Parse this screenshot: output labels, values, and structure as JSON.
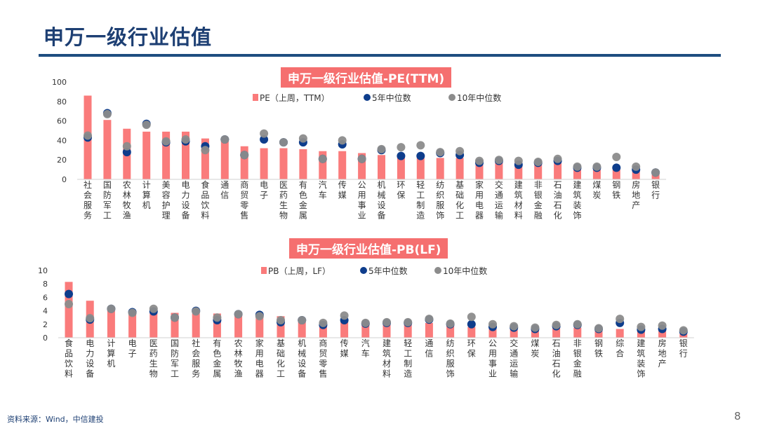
{
  "slide": {
    "title": "申万一级行业估值",
    "source": "资料来源：Wind，中信建投",
    "page_number": "8"
  },
  "colors": {
    "bar": "#fa7b7b",
    "median5": "#0e3d8c",
    "median10": "#8c8c8c",
    "title_bg": "#f56f6f",
    "brand": "#1d3f73"
  },
  "chart_data": [
    {
      "type": "bar",
      "title": "申万一级行业估值-PE(TTM)",
      "ylim": [
        0,
        100
      ],
      "yticks": [
        0,
        20,
        40,
        60,
        80,
        100
      ],
      "legend": [
        "PE（上周，TTM）",
        "5年中位数",
        "10年中位数"
      ],
      "categories": [
        "社会服务",
        "国防军工",
        "农林牧渔",
        "计算机",
        "美容护理",
        "电力设备",
        "食品饮料",
        "通信",
        "商贸零售",
        "电子",
        "医药生物",
        "有色金属",
        "汽车",
        "传媒",
        "公用事业",
        "机械设备",
        "环保",
        "轻工制造",
        "纺织服饰",
        "基础化工",
        "家用电器",
        "交通运输",
        "建筑材料",
        "非银金融",
        "石油石化",
        "建筑装饰",
        "煤炭",
        "钢铁",
        "房地产",
        "银行"
      ],
      "series": [
        {
          "name": "PE（上周，TTM）",
          "values": [
            86,
            61,
            52,
            49,
            49,
            49,
            42,
            40,
            34,
            32,
            32,
            31,
            29,
            29,
            27,
            25,
            24,
            22,
            22,
            22,
            20,
            19,
            18,
            18,
            17,
            11,
            10,
            10,
            9,
            5
          ]
        },
        {
          "name": "5年中位数",
          "values": [
            43,
            68,
            28,
            57,
            38,
            39,
            34,
            41,
            25,
            41,
            38,
            38,
            21,
            36,
            21,
            30,
            24,
            24,
            27,
            25,
            17,
            19,
            15,
            17,
            19,
            12,
            12,
            12,
            10,
            7
          ]
        },
        {
          "name": "10年中位数",
          "values": [
            45,
            67,
            34,
            56,
            39,
            41,
            30,
            41,
            25,
            47,
            38,
            42,
            21,
            40,
            21,
            31,
            33,
            35,
            28,
            29,
            19,
            20,
            19,
            18,
            21,
            13,
            13,
            23,
            13,
            7
          ]
        }
      ]
    },
    {
      "type": "bar",
      "title": "申万一级行业估值-PB(LF)",
      "ylim": [
        0,
        10
      ],
      "yticks": [
        0,
        2,
        4,
        6,
        8,
        10
      ],
      "legend": [
        "PB（上周，LF）",
        "5年中位数",
        "10年中位数"
      ],
      "categories": [
        "食品饮料",
        "电力设备",
        "计算机",
        "电子",
        "医药生物",
        "国防军工",
        "社会服务",
        "有色金属",
        "农林牧渔",
        "家用电器",
        "基础化工",
        "机械设备",
        "商贸零售",
        "传媒",
        "汽车",
        "建筑材料",
        "轻工制造",
        "通信",
        "纺织服饰",
        "环保",
        "公用事业",
        "交通运输",
        "煤炭",
        "石油石化",
        "非银金融",
        "钢铁",
        "综合",
        "建筑装饰",
        "房地产",
        "银行"
      ],
      "series": [
        {
          "name": "PB（上周，LF）",
          "values": [
            8.3,
            5.5,
            4.0,
            3.8,
            3.8,
            3.7,
            3.6,
            3.6,
            3.5,
            3.2,
            3.2,
            2.3,
            2.2,
            2.4,
            2.2,
            2.2,
            2.1,
            2.2,
            2.1,
            1.6,
            1.5,
            1.4,
            1.5,
            1.4,
            1.5,
            1.4,
            1.3,
            1.0,
            1.0,
            0.6
          ]
        },
        {
          "name": "5年中位数",
          "values": [
            6.5,
            2.7,
            4.3,
            3.8,
            3.9,
            3.0,
            4.0,
            2.6,
            3.5,
            3.4,
            2.3,
            2.6,
            1.9,
            2.6,
            2.1,
            2.2,
            2.2,
            2.7,
            2.0,
            2.0,
            1.6,
            1.5,
            1.3,
            1.7,
            1.9,
            1.3,
            2.2,
            1.2,
            1.3,
            0.9
          ]
        },
        {
          "name": "10年中位数",
          "values": [
            5.0,
            2.9,
            4.3,
            3.7,
            4.3,
            3.0,
            3.9,
            3.0,
            3.5,
            3.2,
            2.6,
            2.6,
            2.2,
            3.3,
            2.2,
            2.3,
            2.3,
            2.8,
            2.1,
            3.1,
            2.0,
            1.7,
            1.5,
            1.9,
            2.0,
            1.4,
            2.8,
            1.6,
            1.8,
            1.1
          ]
        }
      ]
    }
  ]
}
